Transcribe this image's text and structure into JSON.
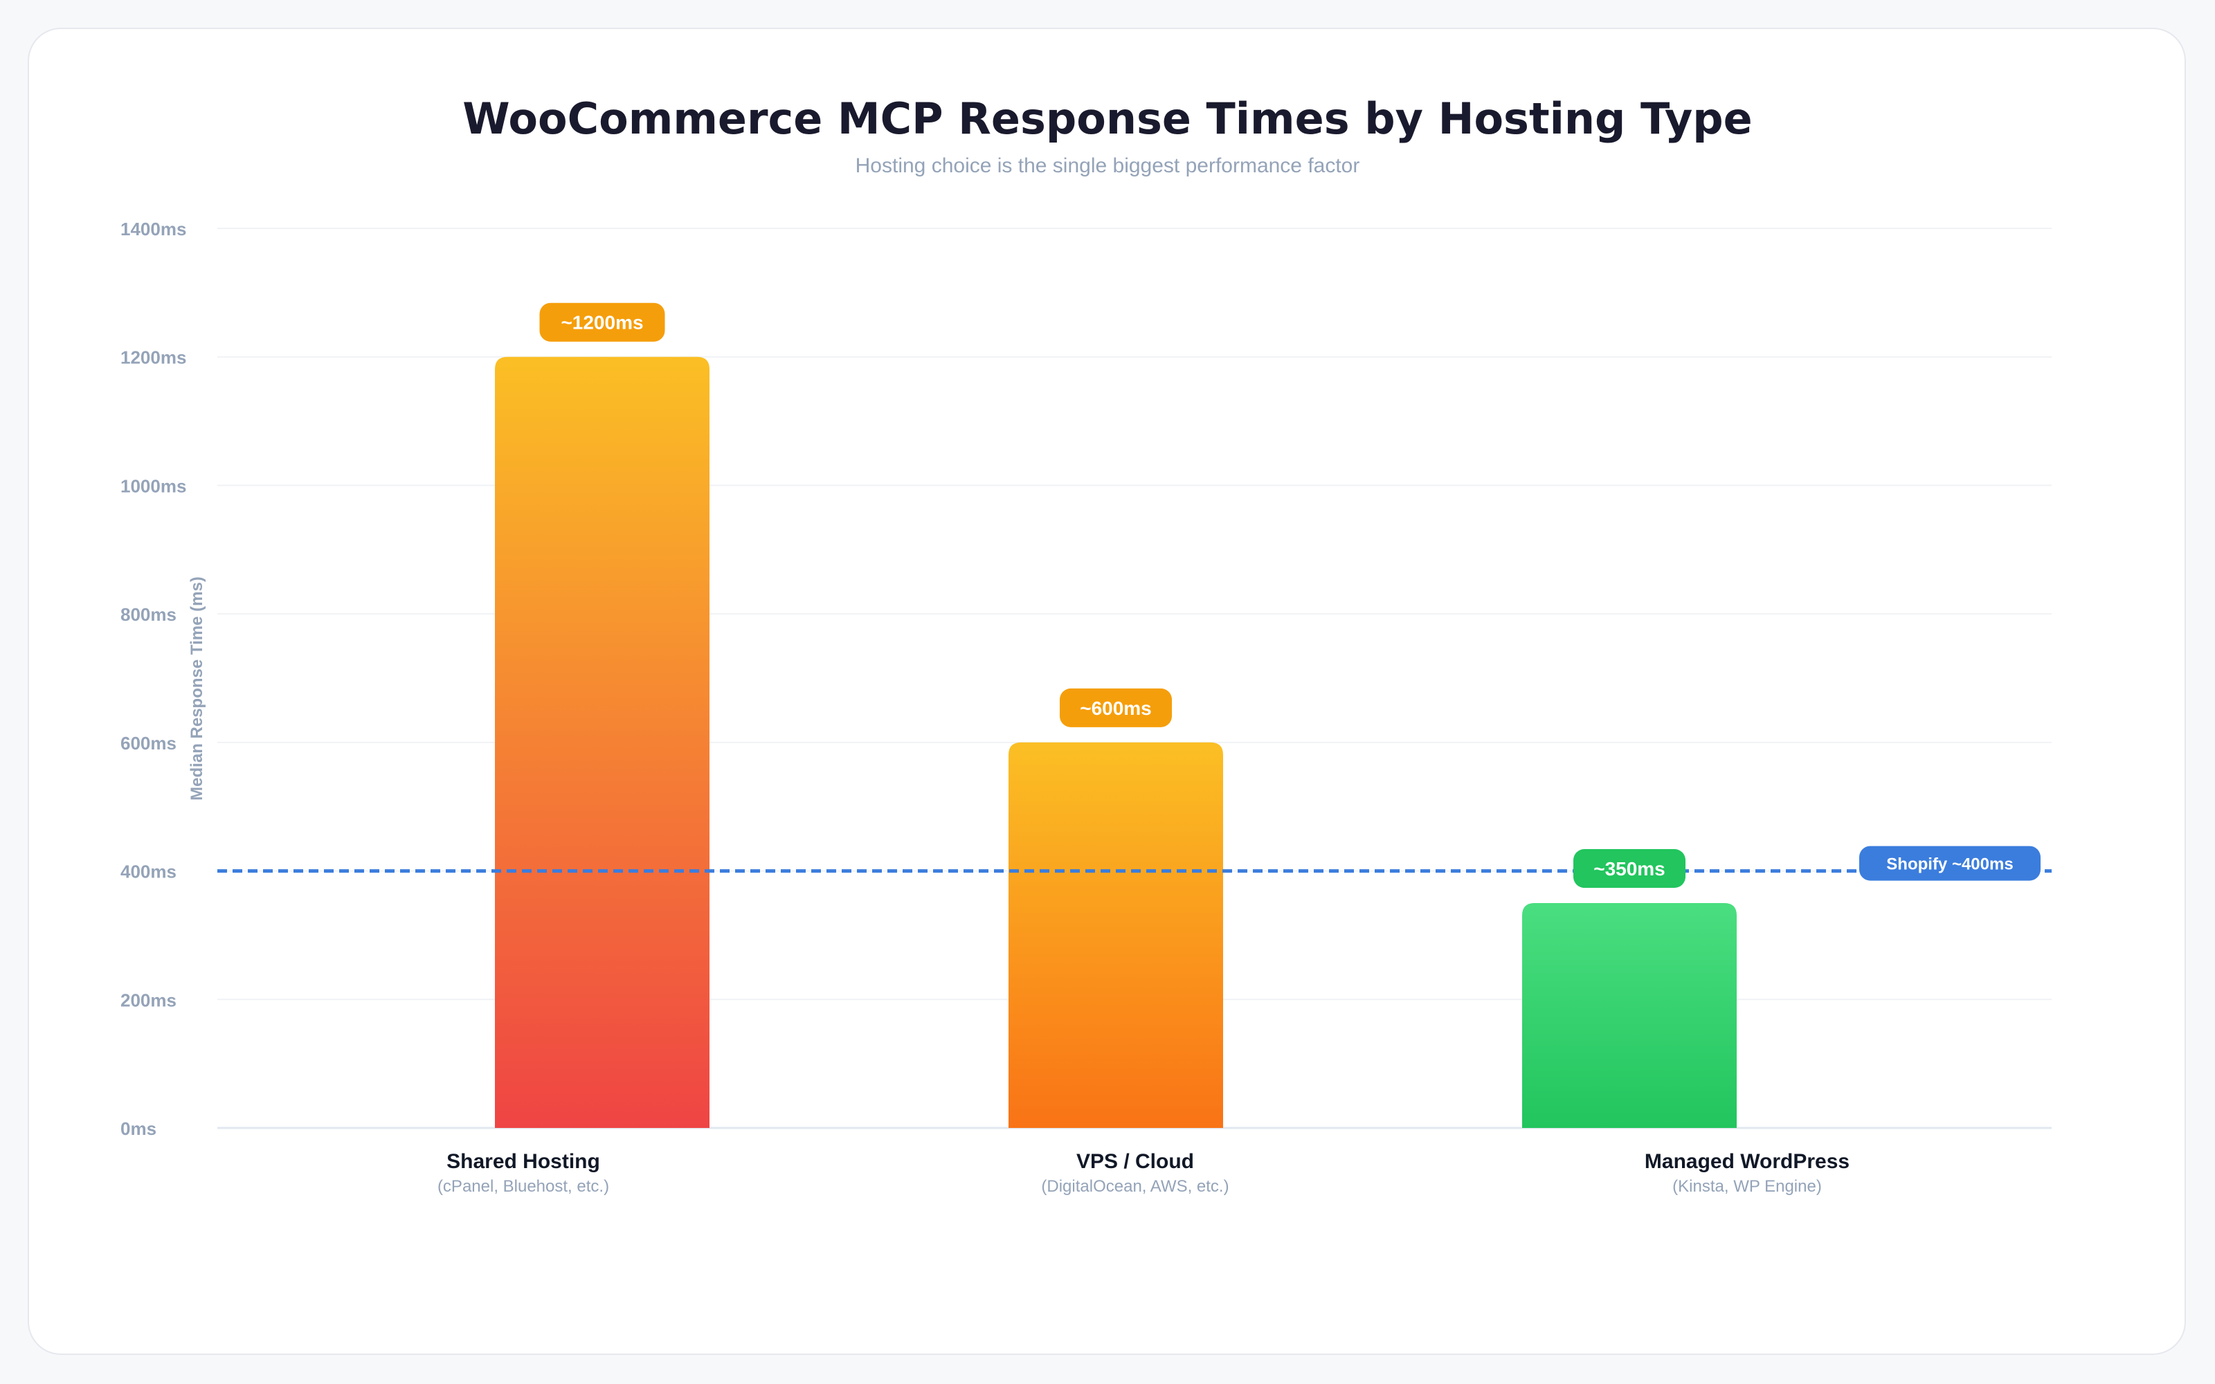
{
  "chart_data": {
    "type": "bar",
    "title": "WooCommerce MCP Response Times by Hosting Type",
    "subtitle": "Hosting choice is the single biggest performance factor",
    "ylabel": "Median Response Time (ms)",
    "ylim": [
      0,
      1400
    ],
    "yticks": [
      0,
      200,
      400,
      600,
      800,
      1000,
      1200,
      1400
    ],
    "ytick_suffix": "ms",
    "grid": true,
    "categories": [
      "Shared Hosting",
      "VPS / Cloud",
      "Managed WordPress"
    ],
    "category_sublabels": [
      "(cPanel, Bluehost, etc.)",
      "(DigitalOcean, AWS, etc.)",
      "(Kinsta, WP Engine)"
    ],
    "values": [
      1200,
      600,
      350
    ],
    "data_labels": [
      "~1200ms",
      "~600ms",
      "~350ms"
    ],
    "reference_line": {
      "value": 400,
      "label": "Shopify ~400ms",
      "color": "#3b7ddd"
    },
    "colors": {
      "bar_shared": [
        "#fbbf24",
        "#ef4444"
      ],
      "bar_vps": [
        "#fbbf24",
        "#f97316"
      ],
      "bar_managed": [
        "#4ade80",
        "#22c55e"
      ],
      "label_orange": "#f59e0b",
      "label_green": "#22c55e",
      "title": "#1a1a2e",
      "muted": "#94a3b8"
    }
  }
}
